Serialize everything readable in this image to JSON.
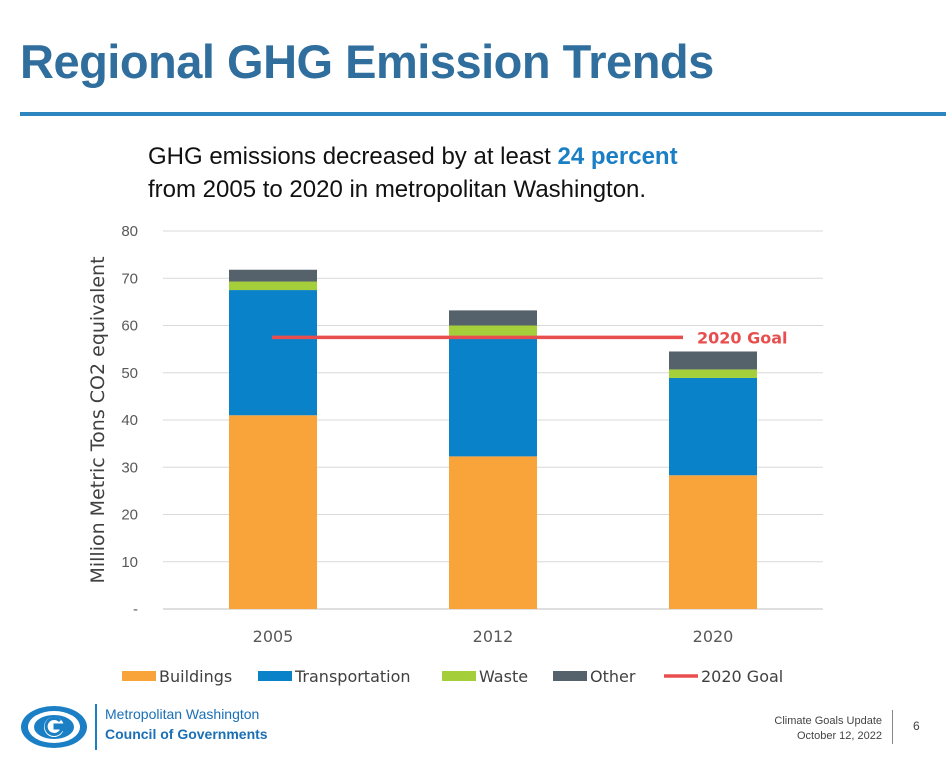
{
  "slide": {
    "title": "Regional GHG Emission Trends",
    "subtitle_pre": "GHG emissions decreased by at least ",
    "subtitle_highlight": "24 percent",
    "subtitle_line2": "from 2005 to 2020 in metropolitan Washington.",
    "org_line1": "Metropolitan Washington",
    "org_line2": "Council of Governments",
    "footer_line1": "Climate Goals Update",
    "footer_line2": "October 12, 2022",
    "page_number": "6"
  },
  "colors": {
    "title": "#2f6e9d",
    "rule": "#2e86c1",
    "highlight": "#1a7fc4",
    "buildings": "#f9a43a",
    "transportation": "#0a82c9",
    "waste": "#a5cf3a",
    "other": "#56626b",
    "goal": "#e84e4e"
  },
  "chart_data": {
    "type": "bar",
    "stacked": true,
    "categories": [
      "2005",
      "2012",
      "2020"
    ],
    "series": [
      {
        "name": "Buildings",
        "values": [
          41.0,
          32.3,
          28.3
        ]
      },
      {
        "name": "Transportation",
        "values": [
          26.5,
          25.5,
          20.6
        ]
      },
      {
        "name": "Waste",
        "values": [
          1.8,
          2.2,
          1.8
        ]
      },
      {
        "name": "Other",
        "values": [
          2.5,
          3.2,
          3.8
        ]
      }
    ],
    "goal": {
      "name": "2020 Goal",
      "value": 57.5,
      "label": "2020 Goal"
    },
    "ylabel": "Million Metric Tons CO2 equivalent",
    "ylim": [
      0,
      80
    ],
    "yticks": [
      "-",
      "10",
      "20",
      "30",
      "40",
      "50",
      "60",
      "70",
      "80"
    ],
    "grid": true,
    "legend_position": "bottom"
  }
}
